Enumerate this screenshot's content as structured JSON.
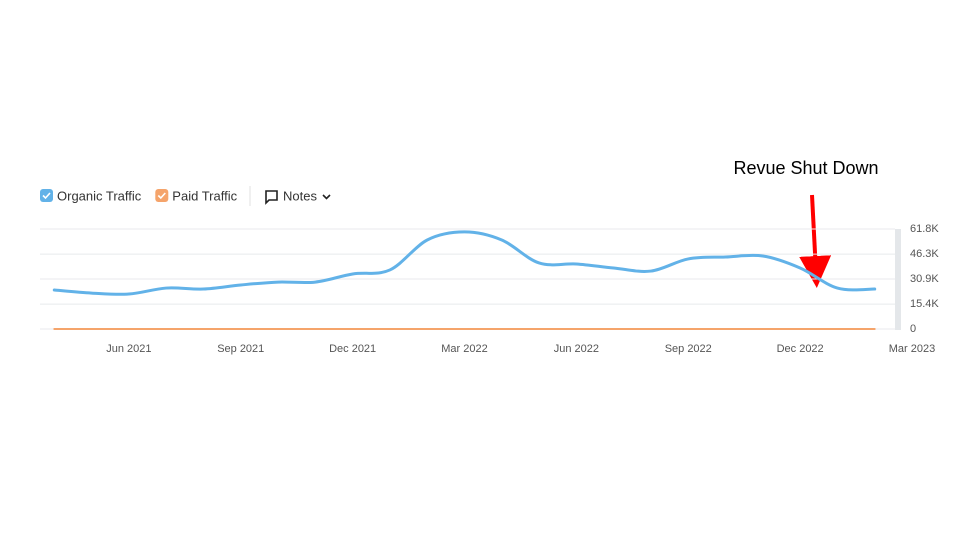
{
  "chart_data": {
    "type": "line",
    "annotation": "Revue Shut Down",
    "notes_label": "Notes",
    "x": [
      "2021-04",
      "2021-05",
      "2021-06",
      "2021-07",
      "2021-08",
      "2021-09",
      "2021-10",
      "2021-11",
      "2021-12",
      "2022-01",
      "2022-02",
      "2022-03",
      "2022-04",
      "2022-05",
      "2022-06",
      "2022-07",
      "2022-08",
      "2022-09",
      "2022-10",
      "2022-11",
      "2022-12",
      "2023-01",
      "2023-02"
    ],
    "series": [
      {
        "name": "Organic Traffic",
        "color": "#62b2e8",
        "values": [
          24100,
          22200,
          21600,
          25300,
          24700,
          27200,
          29000,
          29000,
          34000,
          36500,
          55000,
          60000,
          55000,
          40800,
          40200,
          37700,
          35800,
          43300,
          44500,
          45100,
          37700,
          25300,
          24700
        ]
      },
      {
        "name": "Paid Traffic",
        "color": "#f5a46b",
        "values": [
          0,
          0,
          0,
          0,
          0,
          0,
          0,
          0,
          0,
          0,
          0,
          0,
          0,
          0,
          0,
          0,
          0,
          0,
          0,
          0,
          0,
          0,
          0
        ]
      }
    ],
    "xlim": [
      "2021-03",
      "2023-03"
    ],
    "xticks": [
      {
        "value": "2021-06",
        "label": "Jun 2021"
      },
      {
        "value": "2021-09",
        "label": "Sep 2021"
      },
      {
        "value": "2021-12",
        "label": "Dec 2021"
      },
      {
        "value": "2022-03",
        "label": "Mar 2022"
      },
      {
        "value": "2022-06",
        "label": "Jun 2022"
      },
      {
        "value": "2022-09",
        "label": "Sep 2022"
      },
      {
        "value": "2022-12",
        "label": "Dec 2022"
      },
      {
        "value": "2023-03",
        "label": "Mar 2023"
      }
    ],
    "ylim": [
      0,
      61800
    ],
    "yticks": [
      0,
      {
        "value": 15400,
        "label": "15.4K"
      },
      {
        "value": 30900,
        "label": "30.9K"
      },
      {
        "value": 46300,
        "label": "46.3K"
      },
      {
        "value": 61800,
        "label": "61.8K"
      }
    ],
    "grid": true
  }
}
